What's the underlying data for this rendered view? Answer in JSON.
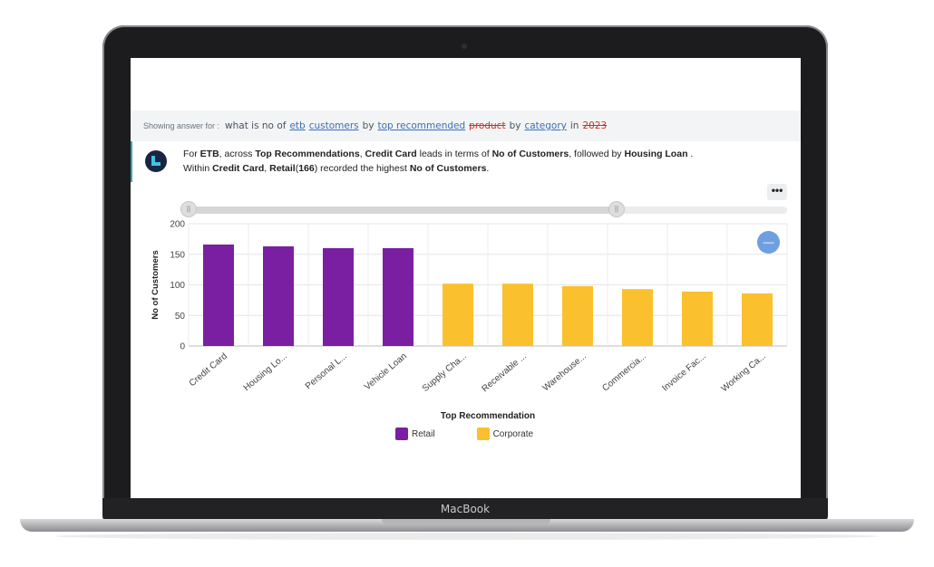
{
  "device": {
    "brand": "MacBook"
  },
  "query": {
    "prefix": "Showing answer for :",
    "tokens": [
      {
        "text": "what is no of",
        "style": "plain"
      },
      {
        "text": "etb",
        "style": "link"
      },
      {
        "text": "customers",
        "style": "link"
      },
      {
        "text": "by",
        "style": "plain"
      },
      {
        "text": "top recommended",
        "style": "link"
      },
      {
        "text": "product",
        "style": "strike"
      },
      {
        "text": "by",
        "style": "plain"
      },
      {
        "text": "category",
        "style": "link"
      },
      {
        "text": "in",
        "style": "plain"
      },
      {
        "text": "2023",
        "style": "strike"
      }
    ]
  },
  "summary": {
    "line1": [
      {
        "text": "For ",
        "bold": false
      },
      {
        "text": "ETB",
        "bold": true
      },
      {
        "text": ", across ",
        "bold": false
      },
      {
        "text": "Top Recommendations",
        "bold": true
      },
      {
        "text": ",  ",
        "bold": false
      },
      {
        "text": "Credit Card",
        "bold": true
      },
      {
        "text": "  leads in terms of ",
        "bold": false
      },
      {
        "text": "No of Customers",
        "bold": true
      },
      {
        "text": ", followed by ",
        "bold": false
      },
      {
        "text": "Housing Loan",
        "bold": true
      },
      {
        "text": " .",
        "bold": false
      }
    ],
    "line2": [
      {
        "text": "Within ",
        "bold": false
      },
      {
        "text": "Credit Card",
        "bold": true
      },
      {
        "text": ", ",
        "bold": false
      },
      {
        "text": "Retail",
        "bold": true
      },
      {
        "text": "(",
        "bold": false
      },
      {
        "text": "166",
        "bold": true
      },
      {
        "text": ") recorded the highest ",
        "bold": false
      },
      {
        "text": "No of Customers",
        "bold": true
      },
      {
        "text": ".",
        "bold": false
      }
    ]
  },
  "controls": {
    "more_label": "•••",
    "zoom_icon": "minus-icon",
    "handle_glyph": "||"
  },
  "colors": {
    "retail": "#7b1fa2",
    "corporate": "#fbc02d",
    "accent": "#39a4b3"
  },
  "chart_data": {
    "type": "bar",
    "xlabel": "Top Recommendation",
    "ylabel": "No of Customers",
    "ylim": [
      0,
      200
    ],
    "yticks": [
      0,
      50,
      100,
      150,
      200
    ],
    "grid": true,
    "legend_position": "bottom",
    "categories": [
      "Credit Card",
      "Housing Lo...",
      "Personal L...",
      "Vehicle Loan",
      "Supply Cha...",
      "Receivable ...",
      "Warehouse...",
      "Commercia...",
      "Invoice Fac...",
      "Working Ca..."
    ],
    "groups": [
      "Retail",
      "Retail",
      "Retail",
      "Retail",
      "Corporate",
      "Corporate",
      "Corporate",
      "Corporate",
      "Corporate",
      "Corporate"
    ],
    "values": [
      166,
      163,
      160,
      160,
      102,
      102,
      98,
      93,
      89,
      86
    ],
    "legend": [
      "Retail",
      "Corporate"
    ]
  }
}
